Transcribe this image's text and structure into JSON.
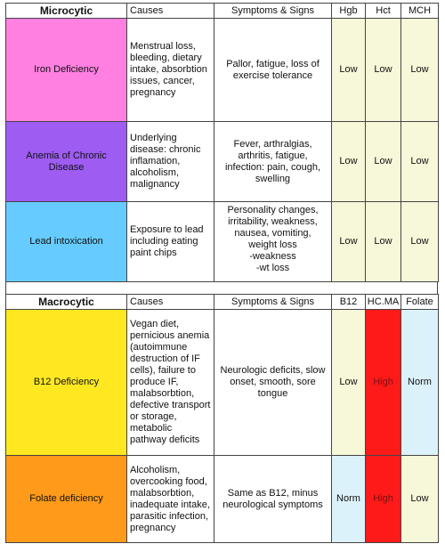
{
  "microcytic": {
    "headers": {
      "category": "Microcytic",
      "causes": "Causes",
      "symptoms": "Symptoms & Signs",
      "lab1": "Hgb",
      "lab2": "Hct",
      "lab3": "MCH"
    },
    "rows": [
      {
        "name": "Iron Deficiency",
        "color": "#ff80e0",
        "causes": [
          "Menstrual loss,",
          "bleeding, dietary",
          "intake, absorbtion",
          "issues, cancer,",
          "pregnancy"
        ],
        "symptoms": [
          "Pallor, fatigue, loss of",
          "exercise tolerance"
        ],
        "labs": [
          "Low",
          "Low",
          "Low"
        ]
      },
      {
        "name": "Anemia of Chronic Disease",
        "name_lines": [
          "Anemia of Chronic",
          "Disease"
        ],
        "color": "#9e5cf2",
        "causes": [
          "Underlying",
          "disease: chronic",
          "inflamation,",
          "alcoholism,",
          "malignancy"
        ],
        "symptoms": [
          "Fever, arthralgias,",
          "arthritis, fatigue,",
          "infection: pain, cough,",
          "swelling"
        ],
        "labs": [
          "Low",
          "Low",
          "Low"
        ]
      },
      {
        "name": "Lead intoxication",
        "color": "#66ccff",
        "causes": [
          "Exposure to lead",
          "including eating",
          "paint chips"
        ],
        "symptoms": [
          "Personality changes,",
          "irritability, weakness,",
          "nausea, vomiting,",
          "weight loss",
          "-weakness",
          "-wt loss"
        ],
        "labs": [
          "Low",
          "Low",
          "Low"
        ]
      }
    ]
  },
  "macrocytic": {
    "headers": {
      "category": "Macrocytic",
      "causes": "Causes",
      "symptoms": "Symptoms & Signs",
      "lab1": "B12",
      "lab2": "HC.MA",
      "lab3": "Folate"
    },
    "rows": [
      {
        "name": "B12 Deficiency",
        "color": "#ffe820",
        "causes": [
          "Vegan diet,",
          "pernicious anemia",
          "(autoimmune",
          "destruction of IF",
          "cells), failure to",
          "produce IF,",
          "malabsorbtion,",
          "defective transport",
          "or storage,",
          "metabolic",
          "pathway deficits"
        ],
        "symptoms": [
          "Neurologic deficits, slow",
          "onset, smooth, sore",
          "tongue"
        ],
        "labs": [
          "Low",
          "High",
          "Norm"
        ]
      },
      {
        "name": "Folate deficiency",
        "color": "#ff9a1a",
        "causes": [
          "Alcoholism,",
          "overcooking food,",
          "malabsorbtion,",
          "inadequate intake,",
          "parasitic infection,",
          "pregnancy"
        ],
        "symptoms": [
          "Same as B12, minus",
          "neurological symptoms"
        ],
        "labs": [
          "Norm",
          "High",
          "Low"
        ]
      }
    ]
  },
  "colors": {
    "low_cell": "#f7f7d9",
    "norm_cell": "#dcf2fb",
    "high_cell": "#ff1a1a",
    "header_bg": "#ffffff",
    "border": "#444444"
  }
}
